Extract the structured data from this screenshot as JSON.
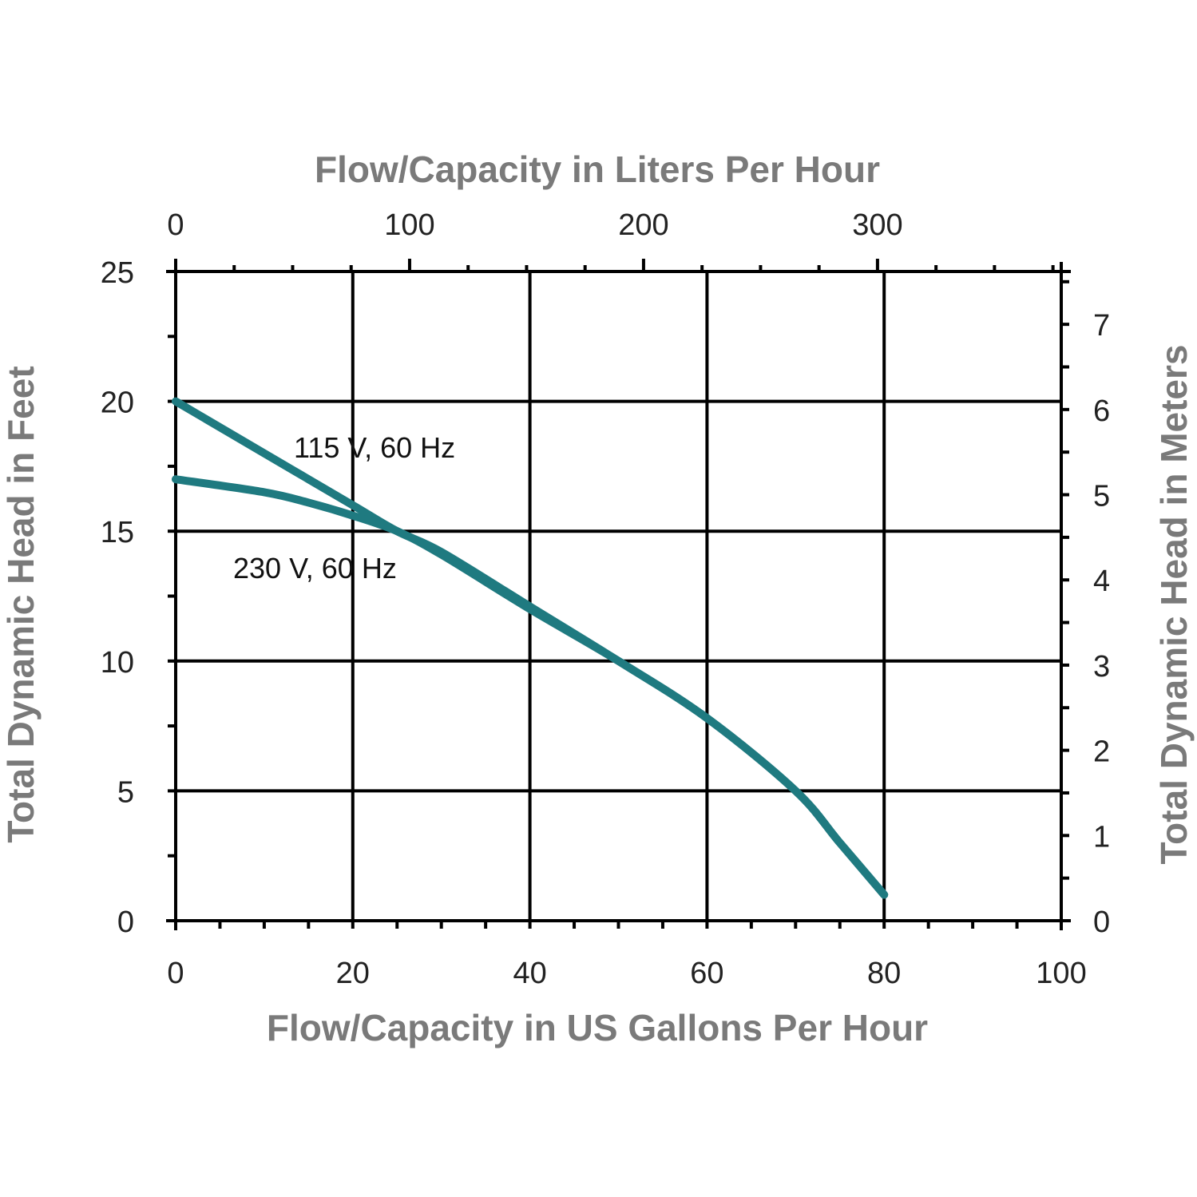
{
  "chart_data": {
    "type": "line",
    "title": "",
    "xlabel": "Flow/Capacity in US Gallons Per Hour",
    "ylabel": "Total Dynamic Head in Feet",
    "x2label": "Flow/Capacity in Liters Per Hour",
    "y2label": "Total Dynamic Head in Meters",
    "xlim": [
      0,
      100
    ],
    "ylim": [
      0,
      25
    ],
    "x2_ticks": [
      "0",
      "100",
      "200",
      "300"
    ],
    "x2_tick_values": [
      0,
      100,
      200,
      300
    ],
    "y2_ticks": [
      "0",
      "1",
      "2",
      "3",
      "4",
      "5",
      "6",
      "7"
    ],
    "y2_tick_values": [
      0,
      1,
      2,
      3,
      4,
      5,
      6,
      7
    ],
    "x_ticks": [
      "0",
      "20",
      "40",
      "60",
      "80",
      "100"
    ],
    "x_tick_values": [
      0,
      20,
      40,
      60,
      80,
      100
    ],
    "y_ticks": [
      "0",
      "5",
      "10",
      "15",
      "20",
      "25"
    ],
    "y_tick_values": [
      0,
      5,
      10,
      15,
      20,
      25
    ],
    "grid": true,
    "line_color": "#1f7a80",
    "series": [
      {
        "name": "115 V, 60 Hz",
        "x": [
          0,
          10,
          20,
          25,
          30,
          40,
          50,
          60,
          70,
          75,
          80
        ],
        "y": [
          20,
          18,
          16,
          15,
          14.2,
          12.1,
          10,
          7.8,
          5,
          3,
          1
        ]
      },
      {
        "name": "230 V, 60 Hz",
        "x": [
          0,
          10,
          15,
          20,
          25,
          30,
          40,
          50,
          60,
          70,
          75,
          80
        ],
        "y": [
          17,
          16.5,
          16.1,
          15.6,
          15,
          14.1,
          12,
          10,
          7.8,
          5,
          3,
          1
        ]
      }
    ]
  }
}
